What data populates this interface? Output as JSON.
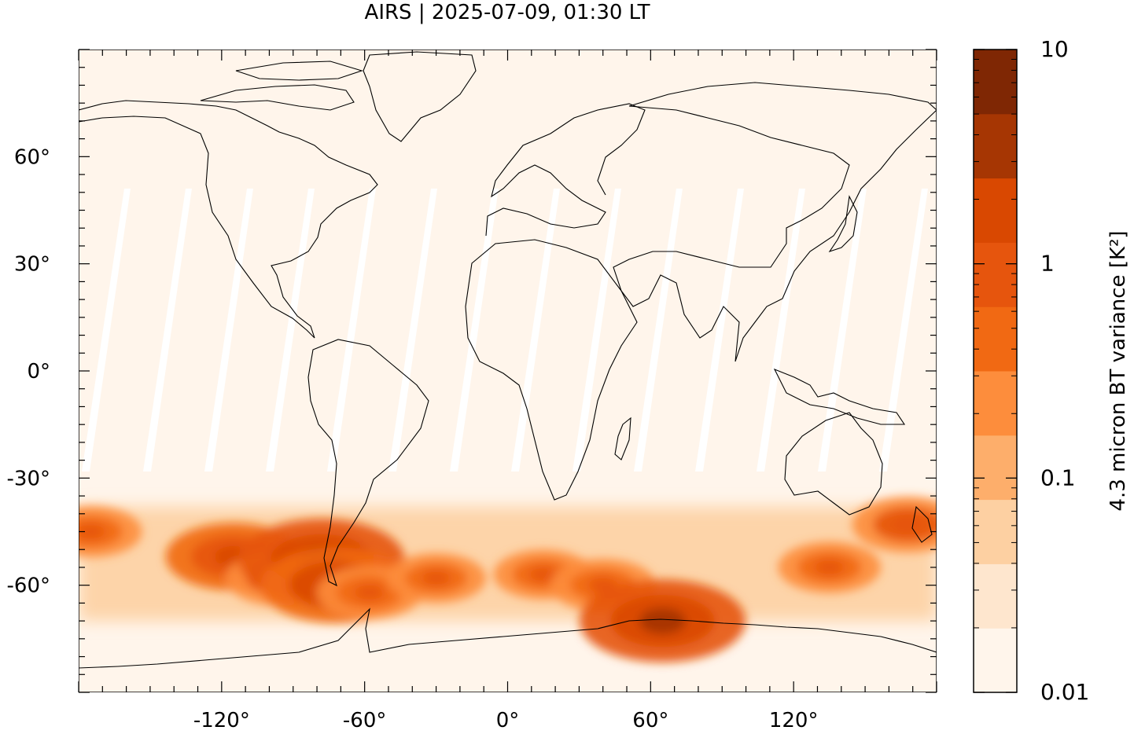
{
  "title": "AIRS | 2025-07-09, 01:30 LT",
  "map": {
    "type": "heatmap",
    "projection": "equirectangular",
    "lon_range": [
      -180,
      180
    ],
    "lat_range": [
      -90,
      90
    ],
    "x_ticks": [
      {
        "value": -120,
        "label": "-120°"
      },
      {
        "value": -60,
        "label": "-60°"
      },
      {
        "value": 0,
        "label": "0°"
      },
      {
        "value": 60,
        "label": "60°"
      },
      {
        "value": 120,
        "label": "120°"
      }
    ],
    "y_ticks": [
      {
        "value": 60,
        "label": "60°"
      },
      {
        "value": 30,
        "label": "30°"
      },
      {
        "value": 0,
        "label": "0°"
      },
      {
        "value": -30,
        "label": "-30°"
      },
      {
        "value": -60,
        "label": "-60°"
      }
    ],
    "background_color": "#fff5eb",
    "coastline_color": "#000000"
  },
  "colorbar": {
    "label": "4.3 micron BT variance [K²]",
    "scale": "log",
    "range": [
      0.01,
      10
    ],
    "tick_labels": [
      {
        "value": 10,
        "label": "10"
      },
      {
        "value": 1,
        "label": "1"
      },
      {
        "value": 0.1,
        "label": "0.1"
      },
      {
        "value": 0.01,
        "label": "0.01"
      }
    ],
    "colors": [
      "#fff5eb",
      "#fee6ce",
      "#fdd0a2",
      "#fdae6b",
      "#fd8d3c",
      "#f16913",
      "#e6550d",
      "#d94801",
      "#a63603",
      "#7f2704"
    ]
  },
  "chart_data": {
    "type": "heatmap",
    "value_units": "K²",
    "hotspots": [
      {
        "lon": -115,
        "lat": -52,
        "value": 2.0
      },
      {
        "lon": -95,
        "lat": -58,
        "value": 1.2
      },
      {
        "lon": -78,
        "lat": -53,
        "value": 3.0
      },
      {
        "lon": -72,
        "lat": -60,
        "value": 2.5
      },
      {
        "lon": -58,
        "lat": -62,
        "value": 1.0
      },
      {
        "lon": -30,
        "lat": -58,
        "value": 0.8
      },
      {
        "lon": 15,
        "lat": -57,
        "value": 0.8
      },
      {
        "lon": 40,
        "lat": -60,
        "value": 1.0
      },
      {
        "lon": 65,
        "lat": -70,
        "value": 3.0
      },
      {
        "lon": 135,
        "lat": -55,
        "value": 0.9
      },
      {
        "lon": 168,
        "lat": -43,
        "value": 1.2
      },
      {
        "lon": -175,
        "lat": -45,
        "value": 0.9
      }
    ]
  }
}
